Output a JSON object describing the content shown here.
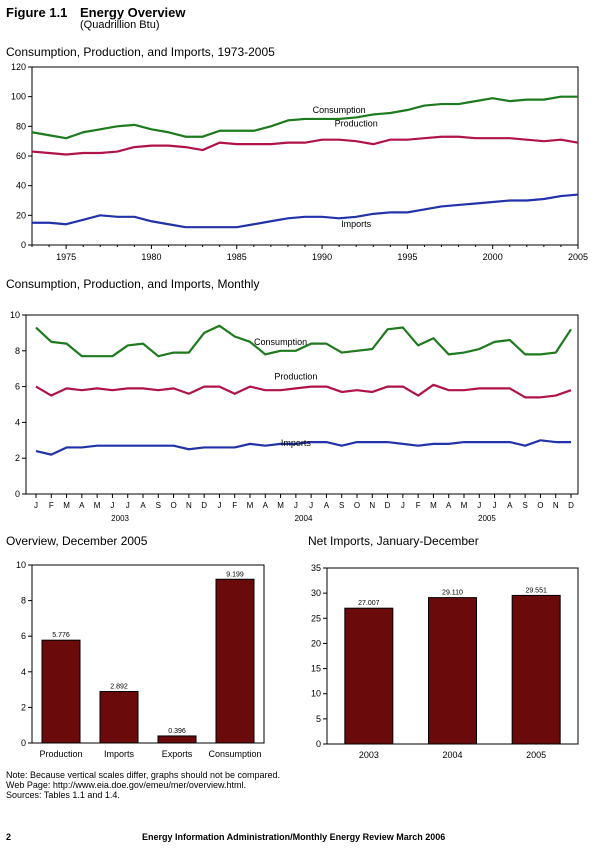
{
  "figure": {
    "number": "Figure 1.1",
    "title": "Energy Overview",
    "units": "(Quadrillion Btu)"
  },
  "colors": {
    "consumption": "#1e7a1e",
    "production": "#b0124a",
    "imports": "#2233aa",
    "bar": "#6b0a0a"
  },
  "chart_data": [
    {
      "type": "line",
      "title": "Consumption, Production, and Imports, 1973-2005",
      "x": [
        1973,
        1974,
        1975,
        1976,
        1977,
        1978,
        1979,
        1980,
        1981,
        1982,
        1983,
        1984,
        1985,
        1986,
        1987,
        1988,
        1989,
        1990,
        1991,
        1992,
        1993,
        1994,
        1995,
        1996,
        1997,
        1998,
        1999,
        2000,
        2001,
        2002,
        2003,
        2004,
        2005
      ],
      "xticks": [
        "1975",
        "1980",
        "1985",
        "1990",
        "1995",
        "2000",
        "2005"
      ],
      "ylim": [
        0,
        120
      ],
      "yticks": [
        "0",
        "20",
        "40",
        "60",
        "80",
        "100",
        "120"
      ],
      "series": [
        {
          "name": "Consumption",
          "values": [
            76,
            74,
            72,
            76,
            78,
            80,
            81,
            78,
            76,
            73,
            73,
            77,
            77,
            77,
            80,
            84,
            85,
            85,
            85,
            86,
            88,
            89,
            91,
            94,
            95,
            95,
            97,
            99,
            97,
            98,
            98,
            100,
            100
          ]
        },
        {
          "name": "Production",
          "values": [
            63,
            62,
            61,
            62,
            62,
            63,
            66,
            67,
            67,
            66,
            64,
            69,
            68,
            68,
            68,
            69,
            69,
            71,
            71,
            70,
            68,
            71,
            71,
            72,
            73,
            73,
            72,
            72,
            72,
            71,
            70,
            71,
            69
          ]
        },
        {
          "name": "Imports",
          "values": [
            15,
            15,
            14,
            17,
            20,
            19,
            19,
            16,
            14,
            12,
            12,
            12,
            12,
            14,
            16,
            18,
            19,
            19,
            18,
            19,
            21,
            22,
            22,
            24,
            26,
            27,
            28,
            29,
            30,
            30,
            31,
            33,
            34
          ]
        }
      ]
    },
    {
      "type": "line",
      "title": "Consumption, Production, and Imports, Monthly",
      "month_labels": [
        "J",
        "F",
        "M",
        "A",
        "M",
        "J",
        "J",
        "A",
        "S",
        "O",
        "N",
        "D",
        "J",
        "F",
        "M",
        "A",
        "M",
        "J",
        "J",
        "A",
        "S",
        "O",
        "N",
        "D",
        "J",
        "F",
        "M",
        "A",
        "M",
        "J",
        "J",
        "A",
        "S",
        "O",
        "N",
        "D"
      ],
      "year_labels": [
        "2003",
        "2004",
        "2005"
      ],
      "ylim": [
        0,
        10
      ],
      "yticks": [
        "0",
        "2",
        "4",
        "6",
        "8",
        "10"
      ],
      "series": [
        {
          "name": "Consumption",
          "values": [
            9.3,
            8.5,
            8.4,
            7.7,
            7.7,
            7.7,
            8.3,
            8.4,
            7.7,
            7.9,
            7.9,
            9.0,
            9.4,
            8.8,
            8.5,
            7.8,
            8.0,
            8.0,
            8.4,
            8.4,
            7.9,
            8.0,
            8.1,
            9.2,
            9.3,
            8.3,
            8.7,
            7.8,
            7.9,
            8.1,
            8.5,
            8.6,
            7.8,
            7.8,
            7.9,
            9.2
          ]
        },
        {
          "name": "Production",
          "values": [
            6.0,
            5.5,
            5.9,
            5.8,
            5.9,
            5.8,
            5.9,
            5.9,
            5.8,
            5.9,
            5.6,
            6.0,
            6.0,
            5.6,
            6.0,
            5.8,
            5.8,
            5.9,
            6.0,
            6.0,
            5.7,
            5.8,
            5.7,
            6.0,
            6.0,
            5.5,
            6.1,
            5.8,
            5.8,
            5.9,
            5.9,
            5.9,
            5.4,
            5.4,
            5.5,
            5.8
          ]
        },
        {
          "name": "Imports",
          "values": [
            2.4,
            2.2,
            2.6,
            2.6,
            2.7,
            2.7,
            2.7,
            2.7,
            2.7,
            2.7,
            2.5,
            2.6,
            2.6,
            2.6,
            2.8,
            2.7,
            2.8,
            2.8,
            2.9,
            2.9,
            2.7,
            2.9,
            2.9,
            2.9,
            2.8,
            2.7,
            2.8,
            2.8,
            2.9,
            2.9,
            2.9,
            2.9,
            2.7,
            3.0,
            2.9,
            2.9
          ]
        }
      ]
    },
    {
      "type": "bar",
      "title": "Overview, December 2005",
      "categories": [
        "Production",
        "Imports",
        "Exports",
        "Consumption"
      ],
      "values": [
        5.776,
        2.892,
        0.396,
        9.199
      ],
      "value_labels": [
        "5.776",
        "2.892",
        "0.396",
        "9.199"
      ],
      "ylim": [
        0,
        10
      ],
      "yticks": [
        "0",
        "2",
        "4",
        "6",
        "8",
        "10"
      ]
    },
    {
      "type": "bar",
      "title": "Net Imports, January-December",
      "categories": [
        "2003",
        "2004",
        "2005"
      ],
      "values": [
        27.007,
        29.11,
        29.551
      ],
      "value_labels": [
        "27.007",
        "29.110",
        "29.551"
      ],
      "ylim": [
        0,
        35
      ],
      "yticks": [
        "0",
        "5",
        "10",
        "15",
        "20",
        "25",
        "30",
        "35"
      ]
    }
  ],
  "notes": {
    "line1": "Note:  Because vertical scales differ, graphs should not be compared.",
    "line2": "Web Page:  http://www.eia.doe.gov/emeu/mer/overview.html.",
    "line3": "Sources:  Tables 1.1 and 1.4."
  },
  "footer": {
    "page": "2",
    "text": "Energy Information Administration/Monthly Energy Review March 2006"
  }
}
